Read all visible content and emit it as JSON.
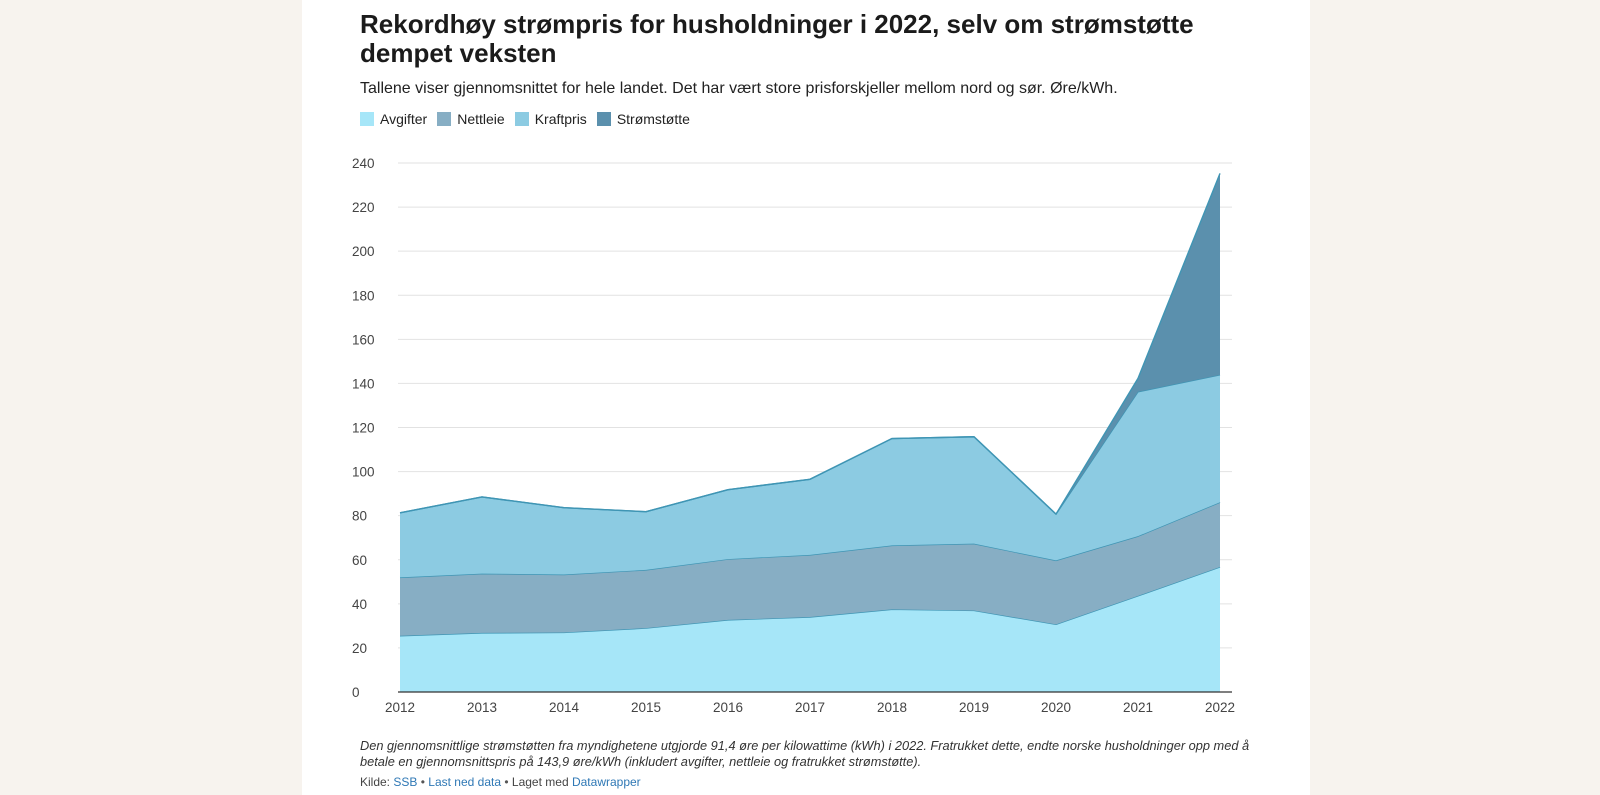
{
  "header": {
    "title": "Rekordhøy strømpris for husholdninger i 2022, selv om strømstøtte dempet veksten",
    "subtitle": "Tallene viser gjennomsnittet for hele landet. Det har vært store prisforskjeller mellom nord og sør. Øre/kWh."
  },
  "footer": {
    "note": "Den gjennomsnittlige strømstøtten fra myndighetene utgjorde 91,4 øre per kilowattime (kWh) i 2022. Fratrukket dette, endte norske husholdninger opp med å betale en gjennomsnittspris på 143,9 øre/kWh (inkludert avgifter, nettleie og fratrukket strømstøtte).",
    "source_label": "Kilde:",
    "source_link": "SSB",
    "separator": "•",
    "download_link": "Last ned data",
    "made_with": "Laget med",
    "tool_link": "Datawrapper"
  },
  "chart_data": {
    "type": "area",
    "stacked": true,
    "x": [
      "2012",
      "2013",
      "2014",
      "2015",
      "2016",
      "2017",
      "2018",
      "2019",
      "2020",
      "2021",
      "2022"
    ],
    "series": [
      {
        "name": "Avgifter",
        "color": "#a6e6f8",
        "values": [
          25.5,
          26.8,
          27.0,
          29.0,
          32.7,
          34.0,
          37.5,
          37.0,
          30.7,
          43.6,
          56.7
        ]
      },
      {
        "name": "Nettleie",
        "color": "#87aec4",
        "values": [
          26.5,
          26.9,
          26.3,
          26.4,
          27.6,
          28.2,
          29.0,
          30.3,
          29.0,
          27.1,
          29.4
        ]
      },
      {
        "name": "Kraftpris",
        "color": "#8ccbe2",
        "values": [
          29.3,
          34.8,
          30.3,
          26.4,
          31.5,
          34.3,
          48.5,
          48.5,
          21.0,
          65.5,
          57.8
        ]
      },
      {
        "name": "Strømstøtte",
        "color": "#5b90ad",
        "values": [
          0,
          0,
          0,
          0,
          0,
          0,
          0,
          0,
          0,
          6.1,
          91.4
        ]
      }
    ],
    "y_ticks": [
      0,
      20,
      40,
      60,
      80,
      100,
      120,
      140,
      160,
      180,
      200,
      220,
      240
    ],
    "ylim": [
      0,
      240
    ],
    "xlabel": "",
    "ylabel": "",
    "grid": true,
    "legend_position": "top-left"
  }
}
